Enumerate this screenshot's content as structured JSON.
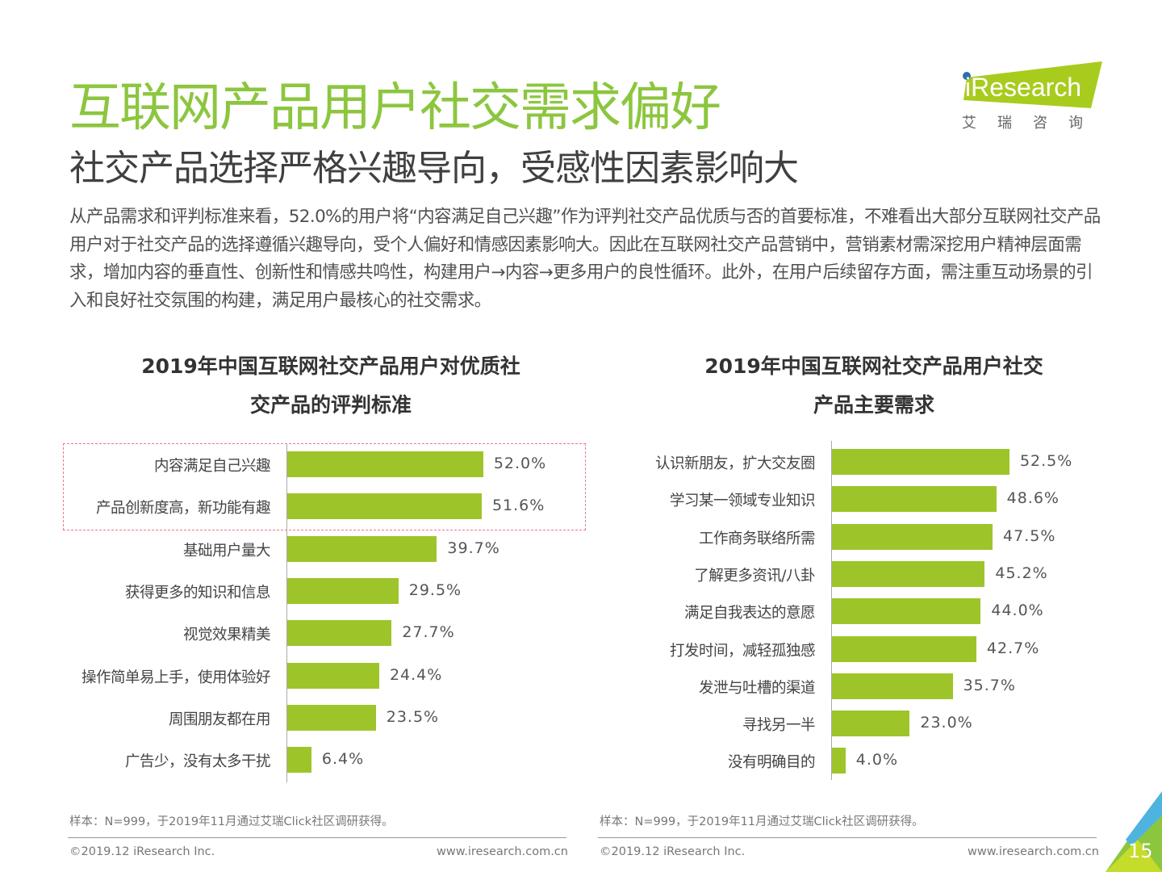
{
  "header": {
    "title": "互联网产品用户社交需求偏好",
    "subtitle": "社交产品选择严格兴趣导向，受感性因素影响大",
    "logo_text": "iResearch",
    "logo_cn": "艾 瑞 咨 询"
  },
  "body_text": "从产品需求和评判标准来看，52.0%的用户将“内容满足自己兴趣”作为评判社交产品优质与否的首要标准，不难看出大部分互联网社交产品用户对于社交产品的选择遵循兴趣导向，受个人偏好和情感因素影响大。因此在互联网社交产品营销中，营销素材需深挖用户精神层面需求，增加内容的垂直性、创新性和情感共鸣性，构建用户→内容→更多用户的良性循环。此外，在用户后续留存方面，需注重互动场景的引入和良好社交氛围的构建，满足用户最核心的社交需求。",
  "colors": {
    "bar": "#9dc52a",
    "title": "#8cc63f",
    "highlight": "#e87a85"
  },
  "chart_data": [
    {
      "type": "bar",
      "orientation": "horizontal",
      "title": "2019年中国互联网社交产品用户对优质社交产品的评判标准",
      "title_lines": [
        "2019年中国互联网社交产品用户对优质社",
        "交产品的评判标准"
      ],
      "categories": [
        "内容满足自己兴趣",
        "产品创新度高，新功能有趣",
        "基础用户量大",
        "获得更多的知识和信息",
        "视觉效果精美",
        "操作简单易上手，使用体验好",
        "周围朋友都在用",
        "广告少，没有太多干扰"
      ],
      "values": [
        52.0,
        51.6,
        39.7,
        29.5,
        27.7,
        24.4,
        23.5,
        6.4
      ],
      "labels": [
        "52.0%",
        "51.6%",
        "39.7%",
        "29.5%",
        "27.7%",
        "24.4%",
        "23.5%",
        "6.4%"
      ],
      "unit": "%",
      "highlighted": [
        0,
        1
      ],
      "note": "样本：N=999，于2019年11月通过艾瑞Click社区调研获得。"
    },
    {
      "type": "bar",
      "orientation": "horizontal",
      "title": "2019年中国互联网社交产品用户社交产品主要需求",
      "title_lines": [
        "2019年中国互联网社交产品用户社交",
        "产品主要需求"
      ],
      "categories": [
        "认识新朋友，扩大交友圈",
        "学习某一领域专业知识",
        "工作商务联络所需",
        "了解更多资讯/八卦",
        "满足自我表达的意愿",
        "打发时间，减轻孤独感",
        "发泄与吐槽的渠道",
        "寻找另一半",
        "没有明确目的"
      ],
      "values": [
        52.5,
        48.6,
        47.5,
        45.2,
        44.0,
        42.7,
        35.7,
        23.0,
        4.0
      ],
      "labels": [
        "52.5%",
        "48.6%",
        "47.5%",
        "45.2%",
        "44.0%",
        "42.7%",
        "35.7%",
        "23.0%",
        "4.0%"
      ],
      "unit": "%",
      "note": "样本：N=999，于2019年11月通过艾瑞Click社区调研获得。"
    }
  ],
  "footer": {
    "copyright": "©2019.12 iResearch Inc.",
    "url": "www.iresearch.com.cn",
    "page": "15"
  }
}
